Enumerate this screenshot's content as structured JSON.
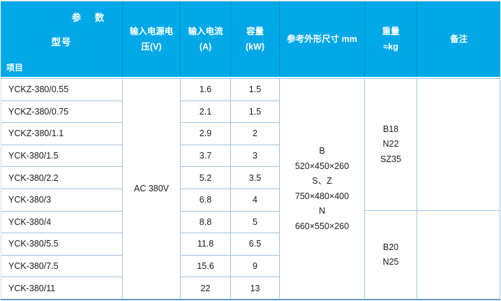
{
  "colors": {
    "header_bg": "#00A8E8",
    "header_text": "#FFFFFF",
    "grid_border": "#9DC3E6",
    "bottom_rule": "#5B9BD5",
    "body_text": "#1A1A1A"
  },
  "table": {
    "corner": {
      "param": "参 数",
      "model": "型号",
      "item": "项目"
    },
    "headers": {
      "voltage": "输入电源电\n压(V)",
      "current": "输入电流\n(A)",
      "capacity": "容量\n(kW)",
      "dimensions": "参考外形尺寸 mm",
      "weight": "重量\n≈kg",
      "remarks": "备注"
    },
    "rows": [
      {
        "model": "YCKZ-380/0.55",
        "current": "1.6",
        "capacity": "1.5"
      },
      {
        "model": "YCKZ-380/0.75",
        "current": "2.1",
        "capacity": "1.5"
      },
      {
        "model": "YCKZ-380/1.1",
        "current": "2.9",
        "capacity": "2"
      },
      {
        "model": "YCK-380/1.5",
        "current": "3.7",
        "capacity": "3"
      },
      {
        "model": "YCK-380/2.2",
        "current": "5.2",
        "capacity": "3.5"
      },
      {
        "model": "YCK-380/3",
        "current": "6.8",
        "capacity": "4"
      },
      {
        "model": "YCK-380/4",
        "current": "8.8",
        "capacity": "5"
      },
      {
        "model": "YCK-380/5.5",
        "current": "11.8",
        "capacity": "6.5"
      },
      {
        "model": "YCK-380/7.5",
        "current": "15.6",
        "capacity": "9"
      },
      {
        "model": "YCK-380/11",
        "current": "22",
        "capacity": "13"
      }
    ],
    "merged": {
      "voltage": "AC 380V",
      "dimensions": "B\n520×450×260\nS、Z\n750×480×400\nN\n660×550×260",
      "weight_upper": "B18\nN22\nSZ35",
      "weight_lower": "B20\nN25",
      "remarks_upper": "",
      "remarks_lower": ""
    }
  }
}
